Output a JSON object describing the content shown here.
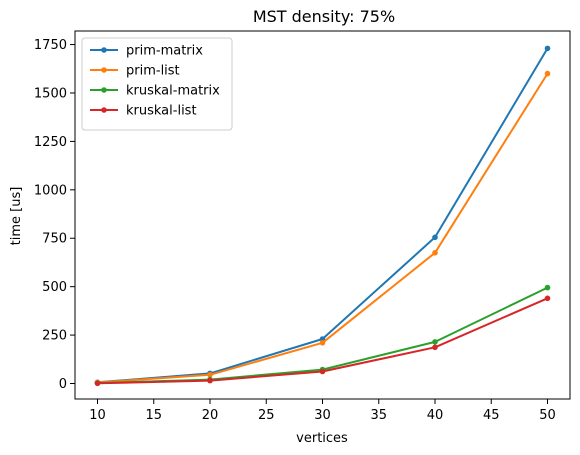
{
  "chart_data": {
    "type": "line",
    "title": "MST density: 75%",
    "xlabel": "vertices",
    "ylabel": "time [us]",
    "x": [
      10,
      20,
      30,
      40,
      50
    ],
    "xlim": [
      8,
      52
    ],
    "ylim": [
      -80,
      1820
    ],
    "xticks": [
      10,
      15,
      20,
      25,
      30,
      35,
      40,
      45,
      50
    ],
    "yticks": [
      0,
      250,
      500,
      750,
      1000,
      1250,
      1500,
      1750
    ],
    "grid": false,
    "legend_position": "top-left",
    "series": [
      {
        "name": "prim-matrix",
        "color": "#1f77b4",
        "values": [
          6,
          52,
          230,
          755,
          1730
        ]
      },
      {
        "name": "prim-list",
        "color": "#ff7f0e",
        "values": [
          5,
          45,
          210,
          675,
          1600
        ]
      },
      {
        "name": "kruskal-matrix",
        "color": "#2ca02c",
        "values": [
          2,
          20,
          72,
          215,
          495
        ]
      },
      {
        "name": "kruskal-list",
        "color": "#d62728",
        "values": [
          1,
          15,
          62,
          187,
          440
        ]
      }
    ]
  }
}
